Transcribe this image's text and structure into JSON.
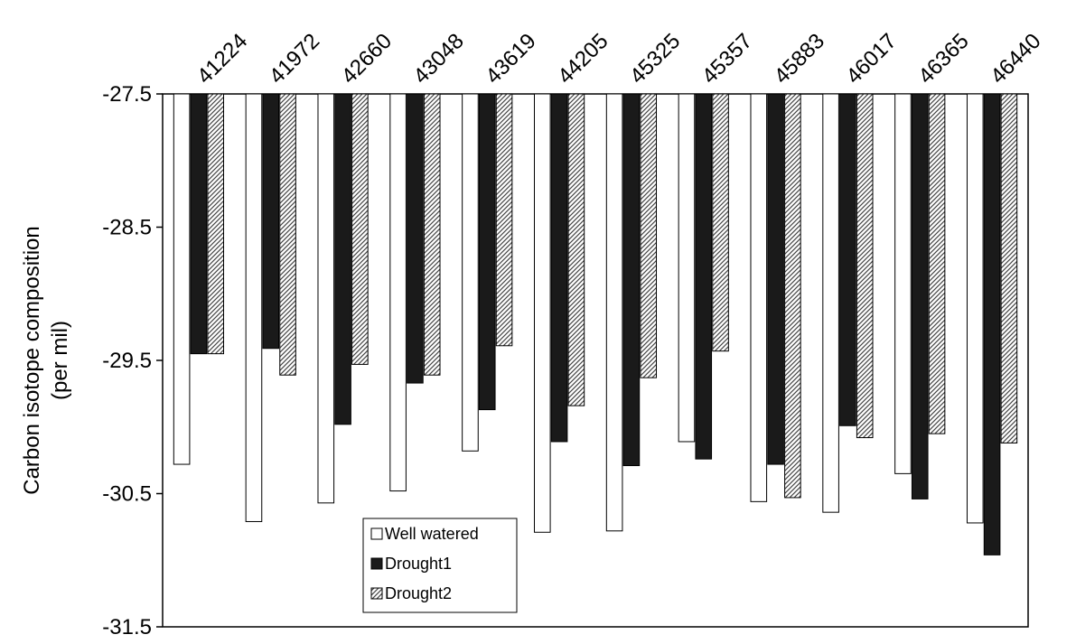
{
  "chart_data": {
    "type": "bar",
    "title": "",
    "xlabel": "",
    "ylabel": [
      "Carbon isotope composition",
      "(per mil)"
    ],
    "categories": [
      "41224",
      "41972",
      "42660",
      "43048",
      "43619",
      "44205",
      "45325",
      "45357",
      "45883",
      "46017",
      "46365",
      "46440"
    ],
    "series": [
      {
        "name": "Well watered",
        "color": "#ffffff",
        "pattern": "none",
        "values": [
          -30.28,
          -30.71,
          -30.57,
          -30.48,
          -30.18,
          -30.79,
          -30.78,
          -30.11,
          -30.56,
          -30.64,
          -30.35,
          -30.72
        ]
      },
      {
        "name": "Drought1",
        "color": "#1a1a1a",
        "pattern": "none",
        "values": [
          -29.45,
          -29.41,
          -29.98,
          -29.67,
          -29.87,
          -30.11,
          -30.29,
          -30.24,
          -30.28,
          -29.99,
          -30.54,
          -30.96
        ]
      },
      {
        "name": "Drought2",
        "color": "#c8c8c8",
        "pattern": "diagonal-hatch",
        "values": [
          -29.45,
          -29.61,
          -29.53,
          -29.61,
          -29.39,
          -29.84,
          -29.63,
          -29.43,
          -30.53,
          -30.08,
          -30.05,
          -30.12
        ]
      }
    ],
    "ylim": [
      -31.5,
      -27.5
    ],
    "yticks": [
      -27.5,
      -28.5,
      -29.5,
      -30.5,
      -31.5
    ],
    "ytick_labels": [
      "-27.5",
      "-28.5",
      "-29.5",
      "-30.5",
      "-31.5"
    ],
    "bar_origin": -27.5,
    "grid": false,
    "legend_position": "bottom-left, inside plot area"
  }
}
